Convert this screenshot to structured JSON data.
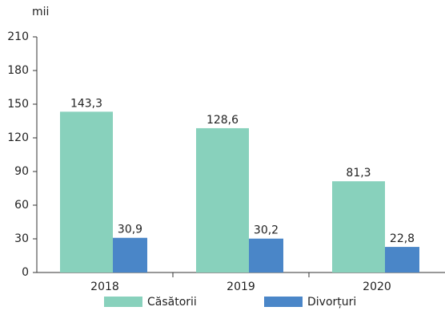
{
  "chart_data": {
    "type": "bar",
    "y_unit": "mii",
    "categories": [
      "2018",
      "2019",
      "2020"
    ],
    "series": [
      {
        "name": "Căsătorii",
        "color": "#88d1bc",
        "values": [
          143.3,
          128.6,
          81.3
        ],
        "value_labels": [
          "143,3",
          "128,6",
          "81,3"
        ]
      },
      {
        "name": "Divorțuri",
        "color": "#4a86c8",
        "values": [
          30.9,
          30.2,
          22.8
        ],
        "value_labels": [
          "30,9",
          "30,2",
          "22,8"
        ]
      }
    ],
    "ylim": [
      0,
      210
    ],
    "yticks": [
      0,
      30,
      60,
      90,
      120,
      150,
      180,
      210
    ],
    "grid": false
  }
}
